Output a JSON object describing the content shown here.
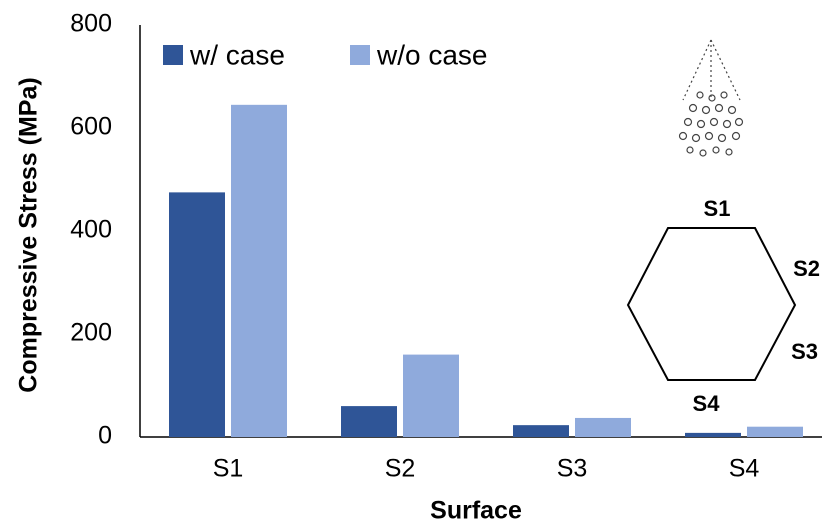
{
  "chart_data": {
    "type": "bar",
    "x_label": "Surface",
    "y_label": "Compressive Stress (MPa)",
    "categories": [
      "S1",
      "S2",
      "S3",
      "S4"
    ],
    "series": [
      {
        "name": "w/ case",
        "color": "#2f5597",
        "values": [
          475,
          60,
          23,
          8
        ]
      },
      {
        "name": "w/o case",
        "color": "#8faadc",
        "values": [
          645,
          160,
          37,
          20
        ]
      }
    ],
    "ylim": [
      0,
      800
    ],
    "yticks": [
      0,
      200,
      400,
      600,
      800
    ],
    "grid": false,
    "annotations": [
      "S1",
      "S2",
      "S3",
      "S4"
    ]
  }
}
